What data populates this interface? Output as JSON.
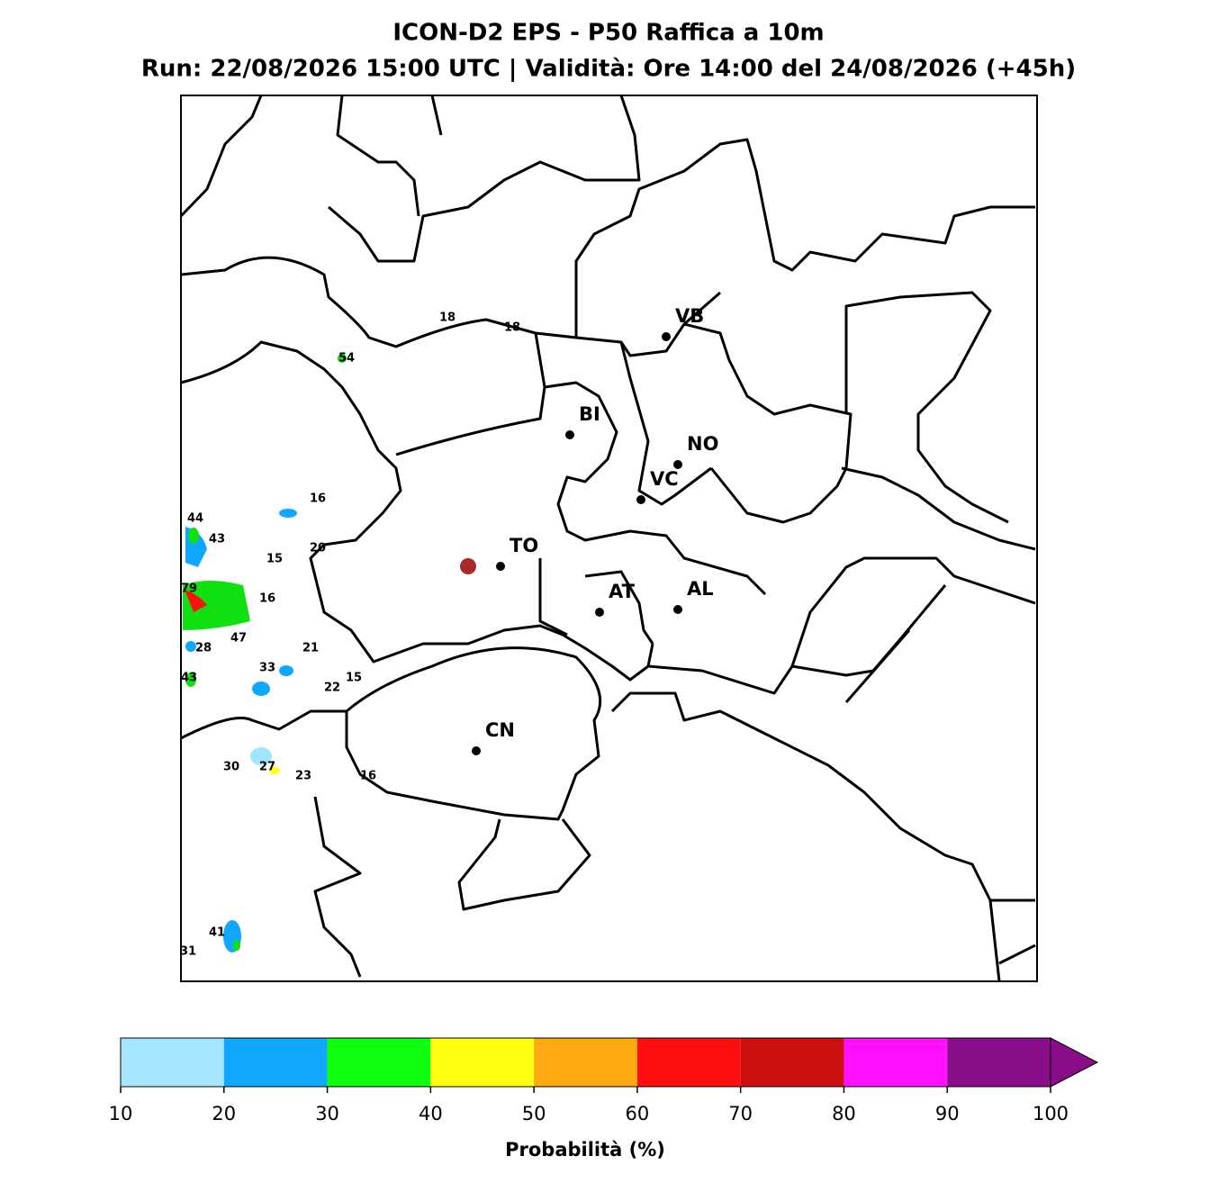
{
  "header": {
    "title": "ICON-D2 EPS - P50 Raffica a 10m",
    "subtitle": "Run: 22/08/2026 15:00 UTC | Validità: Ore 14:00 del 24/08/2026 (+45h)"
  },
  "map": {
    "cities": [
      "VB",
      "BI",
      "NO",
      "VC",
      "TO",
      "AT",
      "AL",
      "CN"
    ],
    "annotations": [
      "18",
      "18",
      "54",
      "16",
      "44",
      "43",
      "20",
      "15",
      "79",
      "16",
      "47",
      "28",
      "21",
      "33",
      "43",
      "15",
      "22",
      "30",
      "27",
      "23",
      "16",
      "41",
      "31"
    ]
  },
  "colorbar": {
    "ticks": [
      10,
      20,
      30,
      40,
      50,
      60,
      70,
      80,
      90,
      100
    ],
    "colors": [
      "#a6e6ff",
      "#10a8ff",
      "#10ff10",
      "#ffff10",
      "#ffaa10",
      "#ff1010",
      "#cc1010",
      "#ff10ff",
      "#8a0d8a"
    ],
    "label": "Probabilità (%)"
  }
}
